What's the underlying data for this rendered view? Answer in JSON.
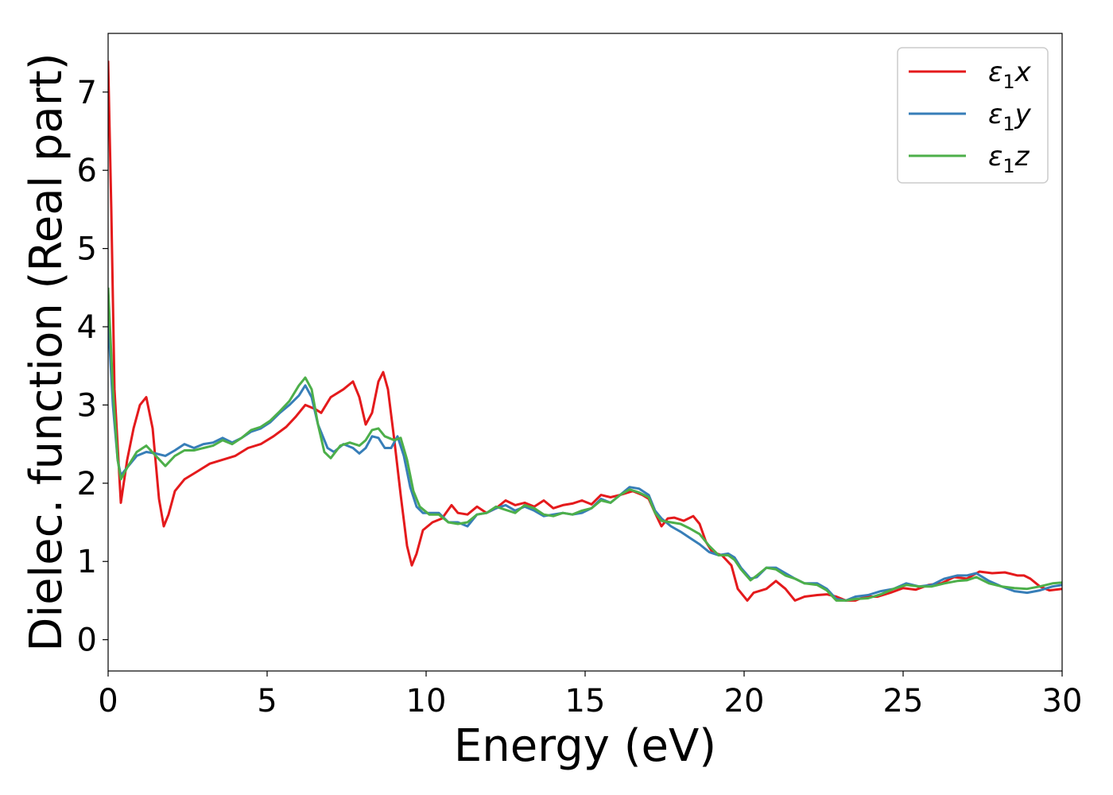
{
  "chart_data": {
    "type": "line",
    "xlabel": "Energy (eV)",
    "ylabel": "Dielec. function (Real part)",
    "xlim": [
      0,
      30
    ],
    "ylim": [
      -0.4,
      7.75
    ],
    "xticks": [
      0,
      5,
      10,
      15,
      20,
      25,
      30
    ],
    "yticks": [
      0,
      1,
      2,
      3,
      4,
      5,
      6,
      7
    ],
    "grid": false,
    "legend_position": "top-right",
    "series": [
      {
        "name": "ε1x",
        "legend_main": "ε",
        "legend_sub": "1",
        "legend_suffix": "x",
        "color": "#e41a1c",
        "points": [
          [
            0,
            7.4
          ],
          [
            0.1,
            5.5
          ],
          [
            0.2,
            3.2
          ],
          [
            0.4,
            1.75
          ],
          [
            0.6,
            2.3
          ],
          [
            0.8,
            2.7
          ],
          [
            1.0,
            3.0
          ],
          [
            1.2,
            3.1
          ],
          [
            1.4,
            2.7
          ],
          [
            1.6,
            1.8
          ],
          [
            1.75,
            1.45
          ],
          [
            1.9,
            1.6
          ],
          [
            2.1,
            1.9
          ],
          [
            2.4,
            2.05
          ],
          [
            2.8,
            2.15
          ],
          [
            3.2,
            2.25
          ],
          [
            3.6,
            2.3
          ],
          [
            4.0,
            2.35
          ],
          [
            4.4,
            2.45
          ],
          [
            4.8,
            2.5
          ],
          [
            5.2,
            2.6
          ],
          [
            5.6,
            2.72
          ],
          [
            5.9,
            2.85
          ],
          [
            6.2,
            3.0
          ],
          [
            6.5,
            2.95
          ],
          [
            6.7,
            2.9
          ],
          [
            7.0,
            3.1
          ],
          [
            7.4,
            3.2
          ],
          [
            7.7,
            3.3
          ],
          [
            7.9,
            3.1
          ],
          [
            8.1,
            2.75
          ],
          [
            8.3,
            2.9
          ],
          [
            8.5,
            3.3
          ],
          [
            8.65,
            3.42
          ],
          [
            8.8,
            3.2
          ],
          [
            9.0,
            2.55
          ],
          [
            9.2,
            1.85
          ],
          [
            9.4,
            1.2
          ],
          [
            9.55,
            0.95
          ],
          [
            9.7,
            1.1
          ],
          [
            9.9,
            1.4
          ],
          [
            10.2,
            1.5
          ],
          [
            10.5,
            1.55
          ],
          [
            10.8,
            1.72
          ],
          [
            11.0,
            1.62
          ],
          [
            11.3,
            1.6
          ],
          [
            11.6,
            1.7
          ],
          [
            11.9,
            1.62
          ],
          [
            12.2,
            1.68
          ],
          [
            12.5,
            1.78
          ],
          [
            12.8,
            1.72
          ],
          [
            13.1,
            1.75
          ],
          [
            13.4,
            1.7
          ],
          [
            13.7,
            1.78
          ],
          [
            14.0,
            1.68
          ],
          [
            14.3,
            1.72
          ],
          [
            14.6,
            1.74
          ],
          [
            14.9,
            1.78
          ],
          [
            15.2,
            1.73
          ],
          [
            15.5,
            1.85
          ],
          [
            15.8,
            1.82
          ],
          [
            16.1,
            1.85
          ],
          [
            16.5,
            1.9
          ],
          [
            16.8,
            1.85
          ],
          [
            17.0,
            1.8
          ],
          [
            17.2,
            1.62
          ],
          [
            17.4,
            1.45
          ],
          [
            17.6,
            1.55
          ],
          [
            17.8,
            1.56
          ],
          [
            18.1,
            1.52
          ],
          [
            18.4,
            1.58
          ],
          [
            18.6,
            1.48
          ],
          [
            18.8,
            1.25
          ],
          [
            19.0,
            1.12
          ],
          [
            19.3,
            1.08
          ],
          [
            19.6,
            0.95
          ],
          [
            19.8,
            0.65
          ],
          [
            20.1,
            0.5
          ],
          [
            20.3,
            0.6
          ],
          [
            20.7,
            0.65
          ],
          [
            21.0,
            0.75
          ],
          [
            21.3,
            0.65
          ],
          [
            21.6,
            0.5
          ],
          [
            21.9,
            0.55
          ],
          [
            22.3,
            0.57
          ],
          [
            22.6,
            0.58
          ],
          [
            22.9,
            0.55
          ],
          [
            23.2,
            0.5
          ],
          [
            23.5,
            0.5
          ],
          [
            23.8,
            0.55
          ],
          [
            24.2,
            0.55
          ],
          [
            24.6,
            0.6
          ],
          [
            25.0,
            0.66
          ],
          [
            25.4,
            0.64
          ],
          [
            25.8,
            0.7
          ],
          [
            26.2,
            0.72
          ],
          [
            26.6,
            0.8
          ],
          [
            27.0,
            0.78
          ],
          [
            27.4,
            0.87
          ],
          [
            27.8,
            0.85
          ],
          [
            28.2,
            0.86
          ],
          [
            28.6,
            0.82
          ],
          [
            28.8,
            0.82
          ],
          [
            29.0,
            0.78
          ],
          [
            29.3,
            0.68
          ],
          [
            29.6,
            0.63
          ],
          [
            30.0,
            0.65
          ]
        ]
      },
      {
        "name": "ε1y",
        "legend_main": "ε",
        "legend_sub": "1",
        "legend_suffix": "y",
        "color": "#377eb8",
        "points": [
          [
            0,
            4.1
          ],
          [
            0.15,
            3.0
          ],
          [
            0.3,
            2.3
          ],
          [
            0.4,
            2.1
          ],
          [
            0.6,
            2.2
          ],
          [
            0.9,
            2.35
          ],
          [
            1.2,
            2.4
          ],
          [
            1.5,
            2.38
          ],
          [
            1.8,
            2.35
          ],
          [
            2.1,
            2.42
          ],
          [
            2.4,
            2.5
          ],
          [
            2.7,
            2.45
          ],
          [
            3.0,
            2.5
          ],
          [
            3.3,
            2.52
          ],
          [
            3.6,
            2.58
          ],
          [
            3.9,
            2.52
          ],
          [
            4.2,
            2.58
          ],
          [
            4.5,
            2.66
          ],
          [
            4.8,
            2.7
          ],
          [
            5.1,
            2.78
          ],
          [
            5.4,
            2.9
          ],
          [
            5.7,
            3.0
          ],
          [
            6.0,
            3.12
          ],
          [
            6.2,
            3.25
          ],
          [
            6.4,
            3.1
          ],
          [
            6.6,
            2.75
          ],
          [
            6.9,
            2.45
          ],
          [
            7.1,
            2.4
          ],
          [
            7.4,
            2.5
          ],
          [
            7.7,
            2.45
          ],
          [
            7.9,
            2.38
          ],
          [
            8.1,
            2.45
          ],
          [
            8.3,
            2.6
          ],
          [
            8.5,
            2.58
          ],
          [
            8.7,
            2.45
          ],
          [
            8.9,
            2.45
          ],
          [
            9.1,
            2.6
          ],
          [
            9.3,
            2.35
          ],
          [
            9.5,
            1.95
          ],
          [
            9.7,
            1.7
          ],
          [
            9.9,
            1.62
          ],
          [
            10.2,
            1.62
          ],
          [
            10.4,
            1.62
          ],
          [
            10.7,
            1.5
          ],
          [
            11.0,
            1.5
          ],
          [
            11.3,
            1.45
          ],
          [
            11.6,
            1.6
          ],
          [
            11.9,
            1.62
          ],
          [
            12.2,
            1.68
          ],
          [
            12.5,
            1.72
          ],
          [
            12.8,
            1.65
          ],
          [
            13.1,
            1.7
          ],
          [
            13.4,
            1.65
          ],
          [
            13.7,
            1.58
          ],
          [
            14.0,
            1.6
          ],
          [
            14.3,
            1.62
          ],
          [
            14.6,
            1.6
          ],
          [
            14.9,
            1.62
          ],
          [
            15.2,
            1.68
          ],
          [
            15.5,
            1.8
          ],
          [
            15.8,
            1.75
          ],
          [
            16.1,
            1.85
          ],
          [
            16.4,
            1.95
          ],
          [
            16.7,
            1.93
          ],
          [
            17.0,
            1.85
          ],
          [
            17.2,
            1.65
          ],
          [
            17.4,
            1.55
          ],
          [
            17.7,
            1.45
          ],
          [
            18.0,
            1.38
          ],
          [
            18.3,
            1.3
          ],
          [
            18.6,
            1.22
          ],
          [
            18.9,
            1.12
          ],
          [
            19.2,
            1.08
          ],
          [
            19.5,
            1.1
          ],
          [
            19.7,
            1.05
          ],
          [
            19.9,
            0.92
          ],
          [
            20.2,
            0.78
          ],
          [
            20.4,
            0.8
          ],
          [
            20.7,
            0.92
          ],
          [
            21.0,
            0.92
          ],
          [
            21.3,
            0.85
          ],
          [
            21.6,
            0.78
          ],
          [
            21.9,
            0.72
          ],
          [
            22.3,
            0.72
          ],
          [
            22.6,
            0.65
          ],
          [
            22.9,
            0.52
          ],
          [
            23.2,
            0.5
          ],
          [
            23.5,
            0.55
          ],
          [
            23.9,
            0.57
          ],
          [
            24.3,
            0.62
          ],
          [
            24.7,
            0.65
          ],
          [
            25.1,
            0.72
          ],
          [
            25.5,
            0.68
          ],
          [
            25.9,
            0.7
          ],
          [
            26.3,
            0.78
          ],
          [
            26.7,
            0.82
          ],
          [
            27.0,
            0.82
          ],
          [
            27.3,
            0.85
          ],
          [
            27.7,
            0.75
          ],
          [
            28.1,
            0.68
          ],
          [
            28.5,
            0.62
          ],
          [
            28.9,
            0.6
          ],
          [
            29.3,
            0.63
          ],
          [
            29.7,
            0.68
          ],
          [
            30.0,
            0.7
          ]
        ]
      },
      {
        "name": "ε1z",
        "legend_main": "ε",
        "legend_sub": "1",
        "legend_suffix": "z",
        "color": "#4daf4a",
        "points": [
          [
            0,
            4.5
          ],
          [
            0.15,
            3.2
          ],
          [
            0.3,
            2.3
          ],
          [
            0.4,
            2.05
          ],
          [
            0.6,
            2.2
          ],
          [
            0.9,
            2.4
          ],
          [
            1.2,
            2.48
          ],
          [
            1.5,
            2.35
          ],
          [
            1.8,
            2.22
          ],
          [
            2.1,
            2.35
          ],
          [
            2.4,
            2.42
          ],
          [
            2.7,
            2.42
          ],
          [
            3.0,
            2.45
          ],
          [
            3.3,
            2.48
          ],
          [
            3.6,
            2.55
          ],
          [
            3.9,
            2.5
          ],
          [
            4.2,
            2.58
          ],
          [
            4.5,
            2.68
          ],
          [
            4.8,
            2.72
          ],
          [
            5.1,
            2.8
          ],
          [
            5.4,
            2.92
          ],
          [
            5.7,
            3.05
          ],
          [
            6.0,
            3.25
          ],
          [
            6.2,
            3.35
          ],
          [
            6.4,
            3.2
          ],
          [
            6.6,
            2.75
          ],
          [
            6.8,
            2.4
          ],
          [
            7.0,
            2.32
          ],
          [
            7.3,
            2.48
          ],
          [
            7.6,
            2.52
          ],
          [
            7.9,
            2.48
          ],
          [
            8.1,
            2.55
          ],
          [
            8.3,
            2.68
          ],
          [
            8.5,
            2.7
          ],
          [
            8.7,
            2.6
          ],
          [
            9.0,
            2.55
          ],
          [
            9.2,
            2.58
          ],
          [
            9.4,
            2.3
          ],
          [
            9.6,
            1.9
          ],
          [
            9.8,
            1.7
          ],
          [
            10.1,
            1.6
          ],
          [
            10.4,
            1.6
          ],
          [
            10.7,
            1.5
          ],
          [
            11.0,
            1.48
          ],
          [
            11.3,
            1.5
          ],
          [
            11.6,
            1.6
          ],
          [
            11.9,
            1.62
          ],
          [
            12.2,
            1.7
          ],
          [
            12.5,
            1.66
          ],
          [
            12.8,
            1.62
          ],
          [
            13.1,
            1.72
          ],
          [
            13.4,
            1.68
          ],
          [
            13.7,
            1.6
          ],
          [
            14.0,
            1.58
          ],
          [
            14.3,
            1.62
          ],
          [
            14.6,
            1.6
          ],
          [
            14.9,
            1.65
          ],
          [
            15.2,
            1.68
          ],
          [
            15.5,
            1.78
          ],
          [
            15.8,
            1.75
          ],
          [
            16.1,
            1.85
          ],
          [
            16.4,
            1.92
          ],
          [
            16.7,
            1.88
          ],
          [
            17.0,
            1.82
          ],
          [
            17.2,
            1.62
          ],
          [
            17.4,
            1.52
          ],
          [
            17.7,
            1.5
          ],
          [
            18.0,
            1.48
          ],
          [
            18.3,
            1.42
          ],
          [
            18.6,
            1.35
          ],
          [
            18.9,
            1.2
          ],
          [
            19.2,
            1.08
          ],
          [
            19.5,
            1.08
          ],
          [
            19.7,
            1.02
          ],
          [
            19.9,
            0.9
          ],
          [
            20.2,
            0.76
          ],
          [
            20.4,
            0.82
          ],
          [
            20.7,
            0.92
          ],
          [
            21.0,
            0.9
          ],
          [
            21.3,
            0.82
          ],
          [
            21.6,
            0.78
          ],
          [
            21.9,
            0.72
          ],
          [
            22.3,
            0.7
          ],
          [
            22.6,
            0.63
          ],
          [
            22.9,
            0.5
          ],
          [
            23.2,
            0.5
          ],
          [
            23.5,
            0.52
          ],
          [
            23.9,
            0.53
          ],
          [
            24.3,
            0.58
          ],
          [
            24.7,
            0.65
          ],
          [
            25.1,
            0.7
          ],
          [
            25.5,
            0.68
          ],
          [
            25.9,
            0.68
          ],
          [
            26.3,
            0.72
          ],
          [
            26.7,
            0.75
          ],
          [
            27.0,
            0.76
          ],
          [
            27.3,
            0.8
          ],
          [
            27.7,
            0.72
          ],
          [
            28.1,
            0.68
          ],
          [
            28.5,
            0.66
          ],
          [
            28.9,
            0.65
          ],
          [
            29.3,
            0.68
          ],
          [
            29.7,
            0.72
          ],
          [
            30.0,
            0.73
          ]
        ]
      }
    ]
  }
}
